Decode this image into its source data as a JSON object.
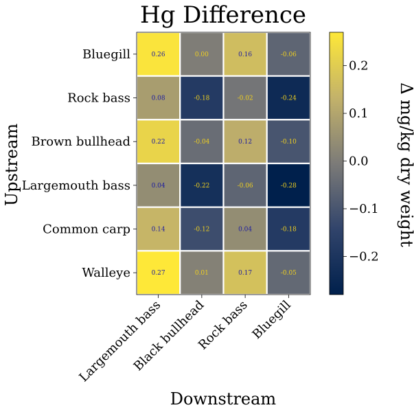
{
  "chart_data": {
    "type": "heatmap",
    "title": "Hg Difference",
    "xlabel": "Downstream",
    "ylabel": "Upstream",
    "x_categories": [
      "Largemouth bass",
      "Black bullhead",
      "Rock bass",
      "Bluegill"
    ],
    "y_categories": [
      "Bluegill",
      "Rock bass",
      "Brown bullhead",
      "Largemouth bass",
      "Common carp",
      "Walleye"
    ],
    "values": [
      [
        0.26,
        0.0,
        0.16,
        -0.06
      ],
      [
        0.08,
        -0.18,
        -0.02,
        -0.24
      ],
      [
        0.22,
        -0.04,
        0.12,
        -0.1
      ],
      [
        0.04,
        -0.22,
        -0.06,
        -0.28
      ],
      [
        0.14,
        -0.12,
        0.04,
        -0.18
      ],
      [
        0.27,
        0.01,
        0.17,
        -0.05
      ]
    ],
    "cell_labels": [
      [
        "0.26",
        "0.00",
        "0.16",
        "-0.06"
      ],
      [
        "0.08",
        "-0.18",
        "-0.02",
        "-0.24"
      ],
      [
        "0.22",
        "-0.04",
        "0.12",
        "-0.10"
      ],
      [
        "0.04",
        "-0.22",
        "-0.06",
        "-0.28"
      ],
      [
        "0.14",
        "-0.12",
        "0.04",
        "-0.18"
      ],
      [
        "0.27",
        "0.01",
        "0.17",
        "-0.05"
      ]
    ],
    "colorbar": {
      "label": "Δ mg/kg dry weight",
      "colormap": "cividis",
      "range": [
        -0.28,
        0.27
      ],
      "ticks": [
        0.2,
        0.1,
        0.0,
        -0.1,
        -0.2
      ],
      "tick_labels": [
        "0.2",
        "0.1",
        "0.0",
        "−0.1",
        "−0.2"
      ]
    },
    "label_colors": {
      "on_light": "#1a1aa0",
      "on_dark": "#f0d020"
    },
    "grid": "white cell borders"
  }
}
